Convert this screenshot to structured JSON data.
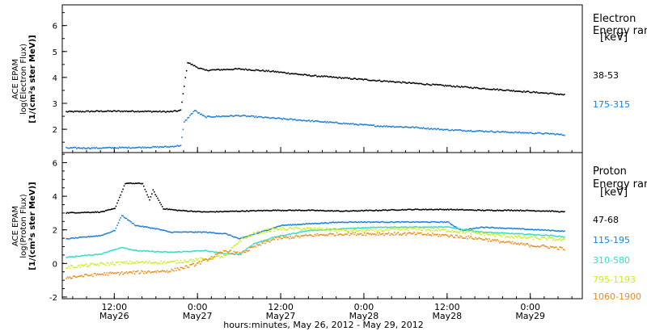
{
  "xlabel": "hours:minutes, May 26, 2012 - May 29, 2012",
  "x_ticks": [
    {
      "t": 12,
      "time": "12:00",
      "date": "May26"
    },
    {
      "t": 24,
      "time": "0:00",
      "date": "May27"
    },
    {
      "t": 36,
      "time": "12:00",
      "date": "May27"
    },
    {
      "t": 48,
      "time": "0:00",
      "date": "May28"
    },
    {
      "t": 60,
      "time": "12:00",
      "date": "May28"
    },
    {
      "t": 72,
      "time": "0:00",
      "date": "May29"
    }
  ],
  "chart_data": [
    {
      "type": "scatter",
      "panel": "electron",
      "ylabel_lines": [
        "ACE EPAM",
        "log(Electron Flux)",
        "[1/(cm²s ster MeV)]"
      ],
      "legend_title": [
        "Electron",
        "Energy ran",
        "[keV]"
      ],
      "x_unit": "hours since May 26, 2012 00:00",
      "xlim": [
        4.5,
        79.5
      ],
      "ylim": [
        1.1,
        6.8
      ],
      "yticks": [
        2,
        3,
        4,
        5,
        6
      ],
      "grid": false,
      "legend_placement": "right",
      "series": [
        {
          "name": "38-53",
          "color": "#000000",
          "points": [
            [
              5,
              2.7
            ],
            [
              10,
              2.72
            ],
            [
              15,
              2.72
            ],
            [
              20,
              2.7
            ],
            [
              21.5,
              2.75
            ],
            [
              22,
              3.7
            ],
            [
              22.5,
              4.6
            ],
            [
              24,
              4.4
            ],
            [
              25,
              4.3
            ],
            [
              30,
              4.35
            ],
            [
              35,
              4.25
            ],
            [
              40,
              4.1
            ],
            [
              45,
              4.0
            ],
            [
              50,
              3.9
            ],
            [
              55,
              3.8
            ],
            [
              60,
              3.7
            ],
            [
              65,
              3.6
            ],
            [
              70,
              3.5
            ],
            [
              75,
              3.4
            ],
            [
              77,
              3.35
            ]
          ]
        },
        {
          "name": "175-315",
          "color": "#1a7fdc",
          "points": [
            [
              5,
              1.3
            ],
            [
              10,
              1.3
            ],
            [
              15,
              1.32
            ],
            [
              20,
              1.35
            ],
            [
              21.5,
              1.4
            ],
            [
              22,
              2.3
            ],
            [
              23.5,
              2.75
            ],
            [
              25,
              2.5
            ],
            [
              30,
              2.55
            ],
            [
              35,
              2.45
            ],
            [
              40,
              2.35
            ],
            [
              45,
              2.25
            ],
            [
              50,
              2.15
            ],
            [
              55,
              2.1
            ],
            [
              60,
              2.0
            ],
            [
              65,
              1.95
            ],
            [
              70,
              1.9
            ],
            [
              75,
              1.85
            ],
            [
              77,
              1.8
            ]
          ]
        }
      ]
    },
    {
      "type": "scatter",
      "panel": "proton",
      "ylabel_lines": [
        "ACE EPAM",
        "log(Proton Flux)",
        "[1/(cm²s ster MeV)]"
      ],
      "legend_title": [
        "Proton",
        "Energy ran",
        "[keV]"
      ],
      "x_unit": "hours since May 26, 2012 00:00",
      "xlim": [
        4.5,
        79.5
      ],
      "ylim": [
        -2.1,
        6.6
      ],
      "yticks": [
        -2,
        0,
        2,
        4,
        6
      ],
      "grid": false,
      "legend_placement": "right",
      "series": [
        {
          "name": "47-68",
          "color": "#000000",
          "points": [
            [
              5,
              3.05
            ],
            [
              10,
              3.1
            ],
            [
              12,
              3.3
            ],
            [
              13.5,
              4.8
            ],
            [
              16,
              4.8
            ],
            [
              17,
              3.8
            ],
            [
              17.5,
              4.4
            ],
            [
              19,
              3.3
            ],
            [
              21,
              3.2
            ],
            [
              25,
              3.1
            ],
            [
              30,
              3.15
            ],
            [
              35,
              3.2
            ],
            [
              40,
              3.2
            ],
            [
              45,
              3.15
            ],
            [
              50,
              3.2
            ],
            [
              55,
              3.25
            ],
            [
              60,
              3.25
            ],
            [
              65,
              3.2
            ],
            [
              70,
              3.2
            ],
            [
              75,
              3.15
            ],
            [
              77,
              3.1
            ]
          ]
        },
        {
          "name": "115-195",
          "color": "#1a7fdc",
          "points": [
            [
              5,
              1.5
            ],
            [
              10,
              1.7
            ],
            [
              12,
              2.0
            ],
            [
              13,
              2.9
            ],
            [
              15,
              2.3
            ],
            [
              18,
              2.1
            ],
            [
              20,
              1.9
            ],
            [
              25,
              1.9
            ],
            [
              28,
              1.8
            ],
            [
              30,
              1.5
            ],
            [
              33,
              1.9
            ],
            [
              36,
              2.3
            ],
            [
              40,
              2.4
            ],
            [
              45,
              2.5
            ],
            [
              50,
              2.5
            ],
            [
              55,
              2.5
            ],
            [
              60,
              2.5
            ],
            [
              62,
              2.0
            ],
            [
              65,
              2.2
            ],
            [
              70,
              2.1
            ],
            [
              75,
              2.0
            ],
            [
              77,
              1.95
            ]
          ]
        },
        {
          "name": "310-580",
          "color": "#33dcc6",
          "points": [
            [
              5,
              0.4
            ],
            [
              10,
              0.6
            ],
            [
              13,
              1.0
            ],
            [
              15,
              0.8
            ],
            [
              20,
              0.7
            ],
            [
              25,
              0.8
            ],
            [
              28,
              0.6
            ],
            [
              30,
              0.6
            ],
            [
              32,
              1.2
            ],
            [
              35,
              1.6
            ],
            [
              40,
              2.0
            ],
            [
              45,
              2.1
            ],
            [
              50,
              2.2
            ],
            [
              55,
              2.2
            ],
            [
              60,
              2.2
            ],
            [
              65,
              1.9
            ],
            [
              70,
              1.8
            ],
            [
              75,
              1.7
            ],
            [
              77,
              1.6
            ]
          ]
        },
        {
          "name": "795-1193",
          "color": "#ccee1a",
          "points": [
            [
              5,
              -0.2
            ],
            [
              10,
              0.0
            ],
            [
              15,
              0.1
            ],
            [
              20,
              0.1
            ],
            [
              25,
              0.3
            ],
            [
              28,
              0.5
            ],
            [
              30,
              1.4
            ],
            [
              32,
              1.8
            ],
            [
              34,
              2.0
            ],
            [
              36,
              2.1
            ],
            [
              40,
              2.1
            ],
            [
              45,
              2.0
            ],
            [
              50,
              2.0
            ],
            [
              55,
              2.1
            ],
            [
              60,
              2.0
            ],
            [
              65,
              1.8
            ],
            [
              70,
              1.6
            ],
            [
              75,
              1.5
            ],
            [
              77,
              1.4
            ]
          ]
        },
        {
          "name": "1060-1900",
          "color": "#ee8c1a",
          "points": [
            [
              5,
              -0.8
            ],
            [
              10,
              -0.6
            ],
            [
              15,
              -0.5
            ],
            [
              20,
              -0.4
            ],
            [
              23,
              -0.1
            ],
            [
              25,
              0.2
            ],
            [
              28,
              0.8
            ],
            [
              30,
              0.6
            ],
            [
              32,
              1.0
            ],
            [
              35,
              1.5
            ],
            [
              40,
              1.7
            ],
            [
              45,
              1.8
            ],
            [
              50,
              1.8
            ],
            [
              55,
              1.8
            ],
            [
              60,
              1.7
            ],
            [
              65,
              1.5
            ],
            [
              70,
              1.2
            ],
            [
              75,
              1.0
            ],
            [
              77,
              0.9
            ]
          ]
        }
      ]
    }
  ]
}
